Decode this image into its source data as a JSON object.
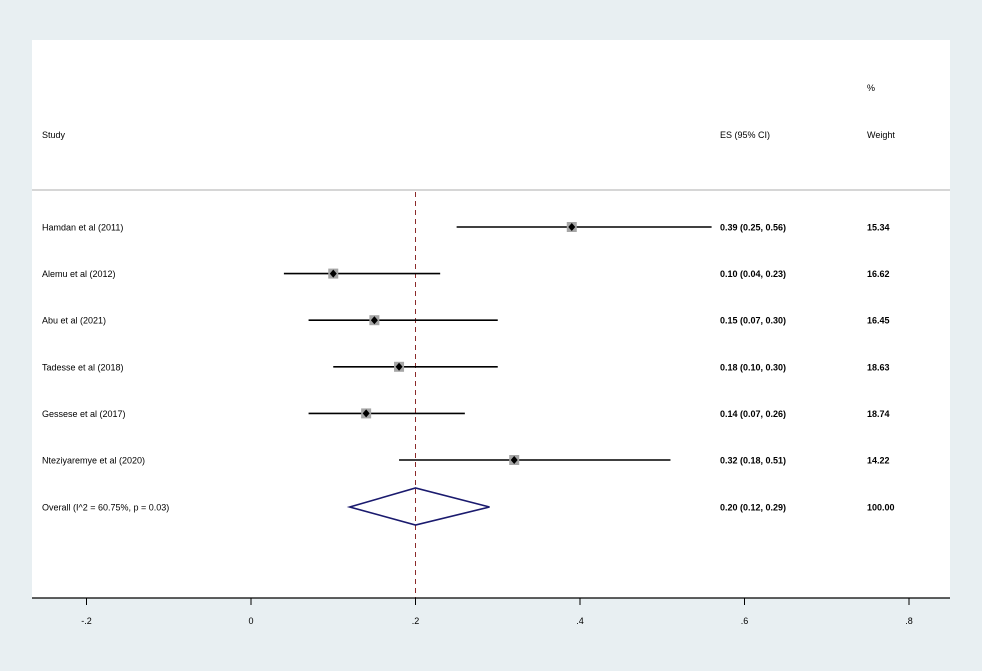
{
  "chart_data": {
    "type": "forest",
    "headers": {
      "study": "Study",
      "es": "ES (95% CI)",
      "weight_top": "%",
      "weight": "Weight"
    },
    "studies": [
      {
        "name": "Hamdan et al (2011)",
        "es": 0.39,
        "lo": 0.25,
        "hi": 0.56,
        "label": "0.39 (0.25, 0.56)",
        "weight": "15.34"
      },
      {
        "name": "Alemu et al (2012)",
        "es": 0.1,
        "lo": 0.04,
        "hi": 0.23,
        "label": "0.10 (0.04, 0.23)",
        "weight": "16.62"
      },
      {
        "name": "Abu et al (2021)",
        "es": 0.15,
        "lo": 0.07,
        "hi": 0.3,
        "label": "0.15 (0.07, 0.30)",
        "weight": "16.45"
      },
      {
        "name": "Tadesse et al (2018)",
        "es": 0.18,
        "lo": 0.1,
        "hi": 0.3,
        "label": "0.18 (0.10, 0.30)",
        "weight": "18.63"
      },
      {
        "name": "Gessese et al (2017)",
        "es": 0.14,
        "lo": 0.07,
        "hi": 0.26,
        "label": "0.14 (0.07, 0.26)",
        "weight": "18.74"
      },
      {
        "name": "Nteziyaremye et al (2020)",
        "es": 0.32,
        "lo": 0.18,
        "hi": 0.51,
        "label": "0.32 (0.18, 0.51)",
        "weight": "14.22"
      }
    ],
    "overall": {
      "name": "Overall  (I^2 = 60.75%, p = 0.03)",
      "es": 0.2,
      "lo": 0.12,
      "hi": 0.29,
      "label": "0.20 (0.12, 0.29)",
      "weight": "100.00"
    },
    "reference_line": 0.2,
    "xlim": [
      -0.2,
      0.8
    ],
    "xticks": [
      -0.2,
      0,
      0.2,
      0.4,
      0.6,
      0.8
    ],
    "xtick_labels": [
      "-.2",
      "0",
      ".2",
      ".4",
      ".6",
      ".8"
    ],
    "colors": {
      "background": "#e8eff2",
      "panel": "#ffffff",
      "diamond": "#1a1a6e",
      "refline": "#8b2a2a",
      "marker_box": "#a6a6a6"
    }
  }
}
